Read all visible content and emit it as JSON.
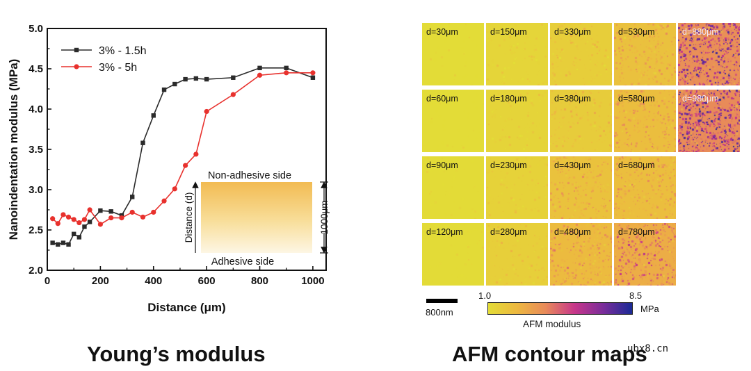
{
  "chart_data": {
    "type": "line",
    "xlabel": "Distance (μm)",
    "ylabel": "Nanoindentation modulus (MPa)",
    "xlim": [
      0,
      1050
    ],
    "ylim": [
      2.0,
      5.0
    ],
    "xticks": [
      0,
      200,
      400,
      600,
      800,
      1000
    ],
    "yticks": [
      2.0,
      2.5,
      3.0,
      3.5,
      4.0,
      4.5,
      5.0
    ],
    "legend_position": "top-left",
    "series": [
      {
        "name": "3% - 1.5h",
        "color": "#2b2b2b",
        "marker": "square",
        "x": [
          20,
          40,
          60,
          80,
          100,
          120,
          140,
          160,
          200,
          240,
          280,
          320,
          360,
          400,
          440,
          480,
          520,
          560,
          600,
          700,
          800,
          900,
          1000
        ],
        "y": [
          2.34,
          2.32,
          2.34,
          2.32,
          2.45,
          2.41,
          2.54,
          2.6,
          2.74,
          2.73,
          2.68,
          2.91,
          3.58,
          3.92,
          4.24,
          4.31,
          4.37,
          4.38,
          4.37,
          4.39,
          4.51,
          4.51,
          4.39
        ]
      },
      {
        "name": "3% - 5h",
        "color": "#e8312d",
        "marker": "circle",
        "x": [
          20,
          40,
          60,
          80,
          100,
          120,
          140,
          160,
          200,
          240,
          280,
          320,
          360,
          400,
          440,
          480,
          520,
          560,
          600,
          700,
          800,
          900,
          1000
        ],
        "y": [
          2.64,
          2.58,
          2.69,
          2.66,
          2.63,
          2.59,
          2.63,
          2.75,
          2.57,
          2.65,
          2.65,
          2.72,
          2.66,
          2.72,
          2.86,
          3.01,
          3.3,
          3.44,
          3.97,
          4.18,
          4.42,
          4.45,
          4.45
        ]
      }
    ],
    "inset": {
      "top_label": "Non-adhesive side",
      "bottom_label": "Adhesive side",
      "axis_label": "Distance (d)",
      "thickness_label": "1000μm"
    }
  },
  "afm": {
    "tiles": [
      {
        "label": "d=30μm",
        "row": 0,
        "col": 0,
        "level": 0.0
      },
      {
        "label": "d=150μm",
        "row": 0,
        "col": 1,
        "level": 0.07
      },
      {
        "label": "d=330μm",
        "row": 0,
        "col": 2,
        "level": 0.14
      },
      {
        "label": "d=530μm",
        "row": 0,
        "col": 3,
        "level": 0.27
      },
      {
        "label": "d=880μm",
        "row": 0,
        "col": 4,
        "level": 0.68
      },
      {
        "label": "d=60μm",
        "row": 1,
        "col": 0,
        "level": 0.0
      },
      {
        "label": "d=180μm",
        "row": 1,
        "col": 1,
        "level": 0.08
      },
      {
        "label": "d=380μm",
        "row": 1,
        "col": 2,
        "level": 0.16
      },
      {
        "label": "d=580μm",
        "row": 1,
        "col": 3,
        "level": 0.3
      },
      {
        "label": "d=980μm",
        "row": 1,
        "col": 4,
        "level": 0.72
      },
      {
        "label": "d=90μm",
        "row": 2,
        "col": 0,
        "level": 0.01
      },
      {
        "label": "d=230μm",
        "row": 2,
        "col": 1,
        "level": 0.1
      },
      {
        "label": "d=430μm",
        "row": 2,
        "col": 2,
        "level": 0.26
      },
      {
        "label": "d=680μm",
        "row": 2,
        "col": 3,
        "level": 0.3
      },
      {
        "label": "d=120μm",
        "row": 3,
        "col": 0,
        "level": 0.01
      },
      {
        "label": "d=280μm",
        "row": 3,
        "col": 1,
        "level": 0.13
      },
      {
        "label": "d=480μm",
        "row": 3,
        "col": 2,
        "level": 0.33
      },
      {
        "label": "d=780μm",
        "row": 3,
        "col": 3,
        "level": 0.45
      }
    ],
    "scale_bar_label": "800nm",
    "colorbar": {
      "min": "1.0",
      "max": "8.5",
      "unit": "MPa",
      "label": "AFM modulus",
      "colors": [
        "#e3dc37",
        "#edb840",
        "#e88a5a",
        "#c7368a",
        "#7a2d9a",
        "#1a2a96"
      ]
    }
  },
  "titles": {
    "left": "Young’s modulus",
    "right": "AFM contour maps"
  },
  "watermark": "ubx8.cn"
}
